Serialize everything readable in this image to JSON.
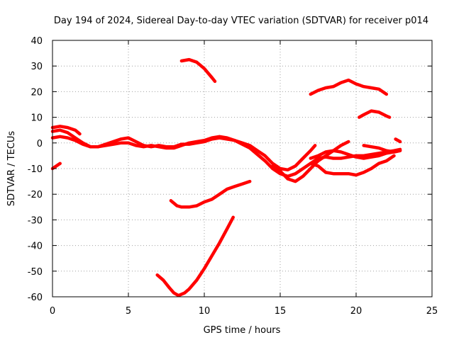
{
  "chart_data": {
    "type": "line",
    "title": "Day 194 of 2024, Sidereal Day-to-day VTEC variation (SDTVAR) for receiver p014",
    "xlabel": "GPS time / hours",
    "ylabel": "SDTVAR / TECUs",
    "xlim": [
      0,
      25
    ],
    "ylim": [
      -60,
      40
    ],
    "xticks": [
      0,
      5,
      10,
      15,
      20,
      25
    ],
    "yticks": [
      -60,
      -50,
      -40,
      -30,
      -20,
      -10,
      0,
      10,
      20,
      30,
      40
    ],
    "grid": true,
    "color": "#ff0000",
    "series": [
      {
        "values": [
          [
            0.0,
            6.0
          ],
          [
            0.5,
            6.5
          ],
          [
            1.0,
            6.0
          ],
          [
            1.5,
            5.0
          ],
          [
            1.8,
            3.5
          ]
        ]
      },
      {
        "values": [
          [
            0.0,
            4.5
          ],
          [
            0.5,
            5.0
          ],
          [
            1.0,
            4.0
          ],
          [
            1.5,
            2.0
          ],
          [
            2.0,
            0.0
          ],
          [
            2.5,
            -1.5
          ],
          [
            3.0,
            -1.5
          ],
          [
            3.5,
            -0.5
          ],
          [
            4.0,
            0.5
          ],
          [
            4.5,
            1.5
          ],
          [
            5.0,
            2.0
          ],
          [
            5.5,
            0.5
          ],
          [
            6.0,
            -1.0
          ],
          [
            6.5,
            -1.5
          ],
          [
            7.0,
            -1.0
          ],
          [
            7.5,
            -1.5
          ],
          [
            8.0,
            -1.5
          ],
          [
            8.5,
            -0.5
          ],
          [
            9.0,
            -0.5
          ],
          [
            9.5,
            0.0
          ],
          [
            10.0,
            0.5
          ],
          [
            10.5,
            1.5
          ],
          [
            11.0,
            2.0
          ],
          [
            11.5,
            1.5
          ],
          [
            12.0,
            1.0
          ],
          [
            12.5,
            0.0
          ],
          [
            13.0,
            -1.0
          ],
          [
            13.5,
            -3.0
          ],
          [
            14.0,
            -5.0
          ],
          [
            14.5,
            -8.0
          ],
          [
            15.0,
            -10.0
          ],
          [
            15.5,
            -10.5
          ],
          [
            16.0,
            -9.0
          ],
          [
            16.5,
            -6.0
          ],
          [
            17.0,
            -3.0
          ],
          [
            17.3,
            -1.0
          ]
        ]
      },
      {
        "values": [
          [
            0.0,
            2.0
          ],
          [
            0.5,
            2.5
          ],
          [
            1.0,
            2.0
          ],
          [
            1.5,
            1.0
          ],
          [
            2.0,
            -0.5
          ],
          [
            2.5,
            -1.5
          ],
          [
            3.0,
            -1.5
          ],
          [
            3.5,
            -1.0
          ],
          [
            4.0,
            -0.5
          ],
          [
            4.5,
            0.0
          ],
          [
            5.0,
            0.0
          ],
          [
            5.5,
            -1.0
          ],
          [
            6.0,
            -1.5
          ],
          [
            6.5,
            -1.0
          ],
          [
            7.0,
            -1.5
          ],
          [
            7.5,
            -2.0
          ],
          [
            8.0,
            -2.0
          ],
          [
            8.5,
            -1.0
          ],
          [
            9.0,
            0.0
          ],
          [
            9.5,
            0.5
          ],
          [
            10.0,
            1.0
          ],
          [
            10.5,
            2.0
          ],
          [
            11.0,
            2.5
          ],
          [
            11.5,
            2.0
          ],
          [
            12.0,
            1.0
          ],
          [
            12.5,
            -0.5
          ],
          [
            13.0,
            -2.0
          ],
          [
            13.5,
            -4.5
          ],
          [
            14.0,
            -7.0
          ],
          [
            14.5,
            -10.0
          ],
          [
            15.0,
            -12.0
          ],
          [
            15.5,
            -13.0
          ],
          [
            16.0,
            -12.0
          ],
          [
            16.5,
            -10.0
          ],
          [
            17.0,
            -8.0
          ],
          [
            17.5,
            -6.0
          ],
          [
            18.0,
            -5.5
          ],
          [
            18.5,
            -6.0
          ],
          [
            19.0,
            -6.0
          ],
          [
            19.5,
            -5.5
          ],
          [
            20.0,
            -5.0
          ],
          [
            20.5,
            -5.0
          ],
          [
            21.0,
            -4.5
          ],
          [
            21.5,
            -4.0
          ],
          [
            22.0,
            -3.5
          ],
          [
            22.5,
            -3.0
          ],
          [
            22.9,
            -2.5
          ]
        ]
      },
      {
        "values": [
          [
            14.5,
            -9.0
          ],
          [
            15.0,
            -11.0
          ],
          [
            15.5,
            -14.0
          ],
          [
            16.0,
            -15.0
          ],
          [
            16.5,
            -13.0
          ],
          [
            17.0,
            -10.0
          ],
          [
            17.5,
            -7.0
          ],
          [
            18.0,
            -5.0
          ],
          [
            18.5,
            -3.0
          ],
          [
            19.0,
            -1.0
          ],
          [
            19.5,
            0.5
          ]
        ]
      },
      {
        "values": [
          [
            17.0,
            -6.0
          ],
          [
            17.5,
            -5.0
          ],
          [
            18.0,
            -3.5
          ],
          [
            18.5,
            -3.0
          ],
          [
            19.0,
            -3.5
          ],
          [
            19.5,
            -4.5
          ],
          [
            20.0,
            -5.5
          ],
          [
            20.5,
            -6.0
          ],
          [
            21.0,
            -5.5
          ],
          [
            21.5,
            -5.0
          ],
          [
            22.0,
            -4.0
          ],
          [
            22.5,
            -3.5
          ],
          [
            22.9,
            -3.0
          ]
        ]
      },
      {
        "values": [
          [
            17.0,
            -8.0
          ],
          [
            17.5,
            -9.0
          ],
          [
            18.0,
            -11.5
          ],
          [
            18.5,
            -12.0
          ],
          [
            19.0,
            -12.0
          ],
          [
            19.5,
            -12.0
          ],
          [
            20.0,
            -12.5
          ],
          [
            20.5,
            -11.5
          ],
          [
            21.0,
            -10.0
          ],
          [
            21.5,
            -8.0
          ],
          [
            22.0,
            -7.0
          ],
          [
            22.5,
            -5.0
          ]
        ]
      },
      {
        "values": [
          [
            20.5,
            -1.0
          ],
          [
            21.0,
            -1.5
          ],
          [
            21.5,
            -2.0
          ],
          [
            22.0,
            -3.0
          ],
          [
            22.5,
            -3.5
          ],
          [
            22.9,
            -3.0
          ]
        ]
      },
      {
        "values": [
          [
            22.6,
            1.5
          ],
          [
            22.9,
            0.5
          ]
        ]
      },
      {
        "values": [
          [
            0.0,
            -10.0
          ],
          [
            0.5,
            -8.0
          ]
        ]
      },
      {
        "values": [
          [
            8.5,
            32.0
          ],
          [
            9.0,
            32.5
          ],
          [
            9.5,
            31.5
          ],
          [
            10.0,
            29.0
          ],
          [
            10.5,
            25.5
          ],
          [
            10.7,
            24.0
          ]
        ]
      },
      {
        "values": [
          [
            17.0,
            19.0
          ],
          [
            17.5,
            20.5
          ],
          [
            18.0,
            21.5
          ],
          [
            18.5,
            22.0
          ],
          [
            19.0,
            23.5
          ],
          [
            19.5,
            24.5
          ],
          [
            20.0,
            23.0
          ],
          [
            20.5,
            22.0
          ],
          [
            21.0,
            21.5
          ],
          [
            21.5,
            21.0
          ],
          [
            22.0,
            19.0
          ]
        ]
      },
      {
        "values": [
          [
            20.2,
            10.0
          ],
          [
            20.5,
            11.0
          ],
          [
            21.0,
            12.5
          ],
          [
            21.5,
            12.0
          ],
          [
            22.0,
            10.5
          ],
          [
            22.2,
            10.0
          ]
        ]
      },
      {
        "values": [
          [
            7.8,
            -22.5
          ],
          [
            8.2,
            -24.5
          ],
          [
            8.5,
            -25.0
          ],
          [
            9.0,
            -25.0
          ],
          [
            9.5,
            -24.5
          ],
          [
            10.0,
            -23.0
          ],
          [
            10.5,
            -22.0
          ],
          [
            11.0,
            -20.0
          ],
          [
            11.5,
            -18.0
          ],
          [
            12.0,
            -17.0
          ],
          [
            12.5,
            -16.0
          ],
          [
            13.0,
            -15.0
          ]
        ]
      },
      {
        "values": [
          [
            6.9,
            -51.5
          ],
          [
            7.3,
            -53.5
          ],
          [
            7.7,
            -56.5
          ],
          [
            8.0,
            -58.5
          ],
          [
            8.3,
            -59.5
          ],
          [
            8.7,
            -58.5
          ],
          [
            9.0,
            -57.0
          ],
          [
            9.5,
            -53.5
          ],
          [
            10.0,
            -49.0
          ],
          [
            10.5,
            -44.0
          ],
          [
            11.0,
            -39.0
          ],
          [
            11.5,
            -33.5
          ],
          [
            11.9,
            -29.0
          ]
        ]
      }
    ]
  }
}
